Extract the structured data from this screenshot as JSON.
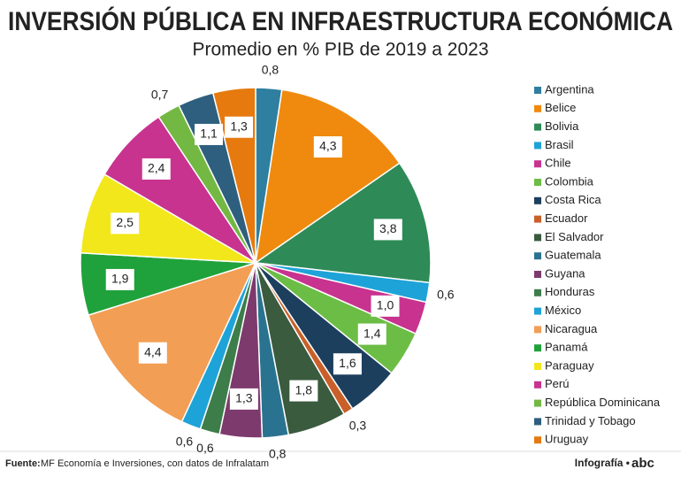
{
  "chart_data": {
    "type": "pie",
    "title": "INVERSIÓN PÚBLICA EN INFRAESTRUCTURA ECONÓMICA",
    "subtitle": "Promedio en % PIB de 2019 a 2023",
    "categories": [
      "Argentina",
      "Belice",
      "Bolivia",
      "Brasil",
      "Chile",
      "Colombia",
      "Costa Rica",
      "Ecuador",
      "El Salvador",
      "Guatemala",
      "Guyana",
      "Honduras",
      "México",
      "Nicaragua",
      "Panamá",
      "Paraguay",
      "Perú",
      "República Dominicana",
      "Trinidad y Tobago",
      "Uruguay"
    ],
    "values": [
      0.8,
      4.3,
      3.8,
      0.6,
      1.0,
      1.4,
      1.6,
      0.3,
      1.8,
      0.8,
      1.3,
      0.6,
      0.6,
      4.4,
      1.9,
      2.5,
      2.4,
      0.7,
      1.1,
      1.3
    ],
    "value_labels": [
      "0,8",
      "4,3",
      "3,8",
      "0,6",
      "1,0",
      "1,4",
      "1,6",
      "0,3",
      "1,8",
      "0,8",
      "1,3",
      "0,6",
      "0,6",
      "4,4",
      "1,9",
      "2,5",
      "2,4",
      "0,7",
      "1,1",
      "1,3"
    ],
    "colors": [
      "#2e7fa0",
      "#ef8a0e",
      "#2e8b57",
      "#1ea3d8",
      "#c8338f",
      "#6cbd45",
      "#1d3f5e",
      "#c9602a",
      "#3a5b3e",
      "#2a7390",
      "#7d3a6d",
      "#3d7d4a",
      "#1ea3d8",
      "#f29e54",
      "#1fa23b",
      "#f2e71a",
      "#c8338f",
      "#73b843",
      "#2e5f7e",
      "#e67a0f"
    ],
    "legend": "right",
    "source_label": "Fuente:",
    "source": "MF Economía e Inversiones, con datos de Infralatam",
    "credit": "Infografía •",
    "logo": "abc"
  }
}
